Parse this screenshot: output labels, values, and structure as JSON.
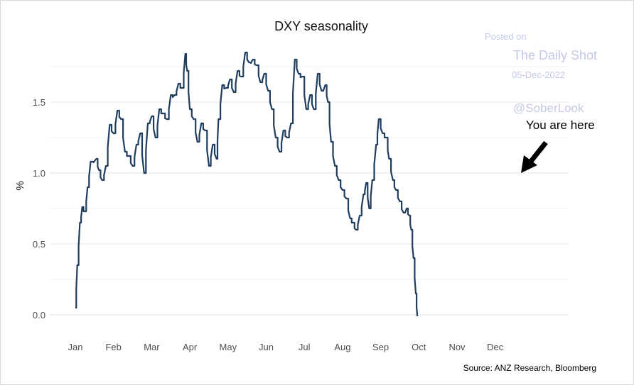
{
  "chart_data": {
    "type": "line",
    "title": "DXY seasonality",
    "ylabel": "%",
    "xlabel": "",
    "ylim": [
      0,
      1.85
    ],
    "yticks": [
      "0.0",
      "0.5",
      "1.0",
      "1.5"
    ],
    "xticks": [
      "Jan",
      "Feb",
      "Mar",
      "Apr",
      "May",
      "Jun",
      "Jul",
      "Aug",
      "Sep",
      "Oct",
      "Nov",
      "Dec"
    ],
    "grid": true,
    "series": [
      {
        "color": "#1f3d5f",
        "points": [
          [
            0.0,
            0.05
          ],
          [
            0.05,
            0.35
          ],
          [
            0.12,
            0.65
          ],
          [
            0.18,
            0.76
          ],
          [
            0.25,
            0.73
          ],
          [
            0.32,
            0.9
          ],
          [
            0.4,
            1.08
          ],
          [
            0.55,
            1.1
          ],
          [
            0.62,
            1.02
          ],
          [
            0.7,
            0.95
          ],
          [
            0.8,
            1.05
          ],
          [
            0.9,
            1.34
          ],
          [
            1.0,
            1.28
          ],
          [
            1.1,
            1.44
          ],
          [
            1.2,
            1.38
          ],
          [
            1.3,
            1.15
          ],
          [
            1.4,
            1.12
          ],
          [
            1.5,
            1.05
          ],
          [
            1.6,
            1.2
          ],
          [
            1.7,
            1.28
          ],
          [
            1.8,
            1.0
          ],
          [
            1.9,
            1.35
          ],
          [
            2.0,
            1.4
          ],
          [
            2.1,
            1.25
          ],
          [
            2.2,
            1.45
          ],
          [
            2.3,
            1.42
          ],
          [
            2.4,
            1.38
          ],
          [
            2.5,
            1.55
          ],
          [
            2.6,
            1.55
          ],
          [
            2.7,
            1.63
          ],
          [
            2.8,
            1.6
          ],
          [
            2.88,
            1.84
          ],
          [
            2.93,
            1.72
          ],
          [
            3.0,
            1.45
          ],
          [
            3.1,
            1.38
          ],
          [
            3.2,
            1.22
          ],
          [
            3.3,
            1.35
          ],
          [
            3.4,
            1.3
          ],
          [
            3.5,
            1.05
          ],
          [
            3.6,
            1.2
          ],
          [
            3.7,
            1.1
          ],
          [
            3.75,
            1.38
          ],
          [
            3.85,
            1.62
          ],
          [
            3.95,
            1.6
          ],
          [
            4.05,
            1.66
          ],
          [
            4.15,
            1.57
          ],
          [
            4.25,
            1.72
          ],
          [
            4.35,
            1.68
          ],
          [
            4.45,
            1.85
          ],
          [
            4.55,
            1.78
          ],
          [
            4.65,
            1.8
          ],
          [
            4.75,
            1.76
          ],
          [
            4.85,
            1.64
          ],
          [
            4.95,
            1.7
          ],
          [
            5.05,
            1.58
          ],
          [
            5.15,
            1.45
          ],
          [
            5.25,
            1.25
          ],
          [
            5.35,
            1.15
          ],
          [
            5.45,
            1.3
          ],
          [
            5.55,
            1.25
          ],
          [
            5.65,
            1.35
          ],
          [
            5.75,
            1.8
          ],
          [
            5.85,
            1.7
          ],
          [
            5.95,
            1.68
          ],
          [
            6.05,
            1.45
          ],
          [
            6.15,
            1.55
          ],
          [
            6.25,
            1.45
          ],
          [
            6.35,
            1.7
          ],
          [
            6.45,
            1.58
          ],
          [
            6.55,
            1.62
          ],
          [
            6.62,
            1.5
          ],
          [
            6.7,
            1.22
          ],
          [
            6.8,
            1.05
          ],
          [
            6.9,
            0.95
          ],
          [
            7.0,
            0.88
          ],
          [
            7.1,
            0.82
          ],
          [
            7.2,
            0.68
          ],
          [
            7.28,
            0.65
          ],
          [
            7.35,
            0.6
          ],
          [
            7.45,
            0.7
          ],
          [
            7.55,
            0.85
          ],
          [
            7.62,
            0.93
          ],
          [
            7.7,
            0.75
          ],
          [
            7.78,
            0.95
          ],
          [
            7.88,
            1.2
          ],
          [
            7.95,
            1.38
          ],
          [
            8.05,
            1.28
          ],
          [
            8.15,
            1.25
          ],
          [
            8.22,
            1.1
          ],
          [
            8.32,
            0.95
          ],
          [
            8.4,
            0.88
          ],
          [
            8.5,
            0.8
          ],
          [
            8.6,
            0.72
          ],
          [
            8.68,
            0.75
          ],
          [
            8.75,
            0.7
          ],
          [
            8.8,
            0.6
          ],
          [
            8.86,
            0.4
          ],
          [
            8.92,
            0.15
          ],
          [
            8.96,
            -0.01
          ]
        ]
      }
    ],
    "annotations": {
      "watermark": [
        "Posted on",
        "The Daily Shot",
        "05-Dec-2022",
        "@SoberLook"
      ],
      "pointer_text": "You are here",
      "source": "Source: ANZ Research, Bloomberg"
    }
  }
}
